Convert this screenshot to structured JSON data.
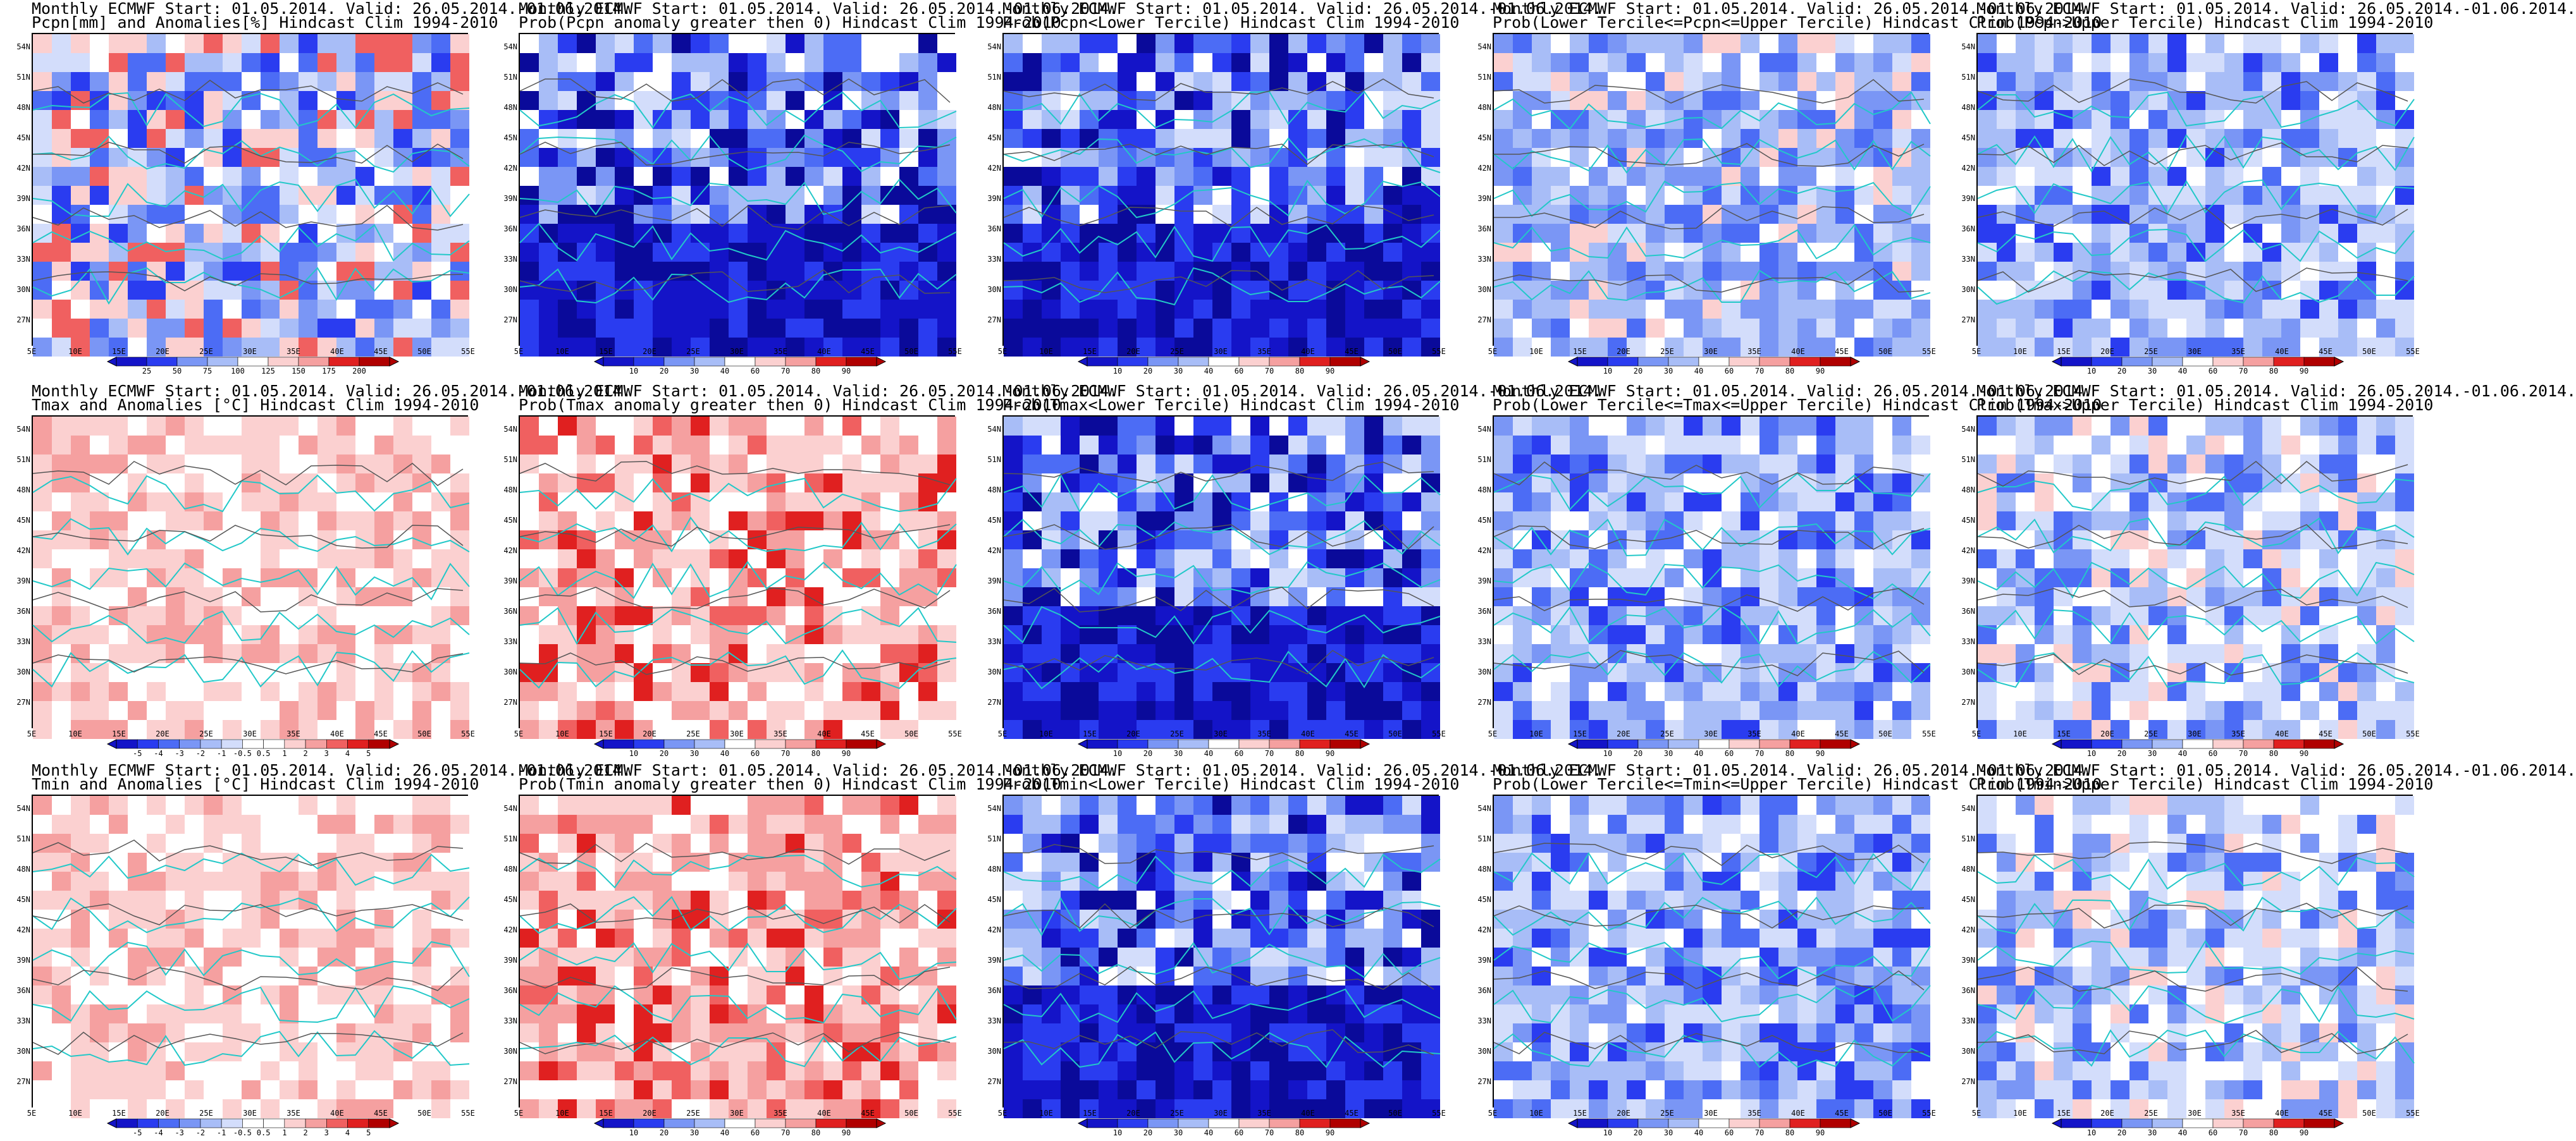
{
  "figure": {
    "background": "#ffffff",
    "coastline_color": "#22c8c8",
    "contour_color": "#555555",
    "lat_labels": [
      "54N",
      "51N",
      "48N",
      "45N",
      "42N",
      "39N",
      "36N",
      "33N",
      "30N",
      "27N"
    ],
    "lon_labels": [
      "5E",
      "10E",
      "15E",
      "20E",
      "25E",
      "30E",
      "35E",
      "40E",
      "45E",
      "50E",
      "55E"
    ]
  },
  "colorbars": {
    "pcpn_pct": [
      "25",
      "50",
      "75",
      "100",
      "125",
      "150",
      "175",
      "200"
    ],
    "temp_anom": [
      "-5",
      "-4",
      "-3",
      "-2",
      "-1",
      "-0.5",
      "0.5",
      "1",
      "2",
      "3",
      "4",
      "5"
    ],
    "prob": [
      "10",
      "20",
      "30",
      "40",
      "60",
      "70",
      "80",
      "90"
    ],
    "colors_div": [
      "#1414c8",
      "#2a3cf0",
      "#4c6cf5",
      "#7a96f5",
      "#a8bdf7",
      "#d3ddfb",
      "#ffffff",
      "#fbd0d0",
      "#f5a0a0",
      "#f06060",
      "#e02020",
      "#b00000"
    ]
  },
  "panels": [
    {
      "line1": "Monthly ECMWF Start: 01.05.2014. Valid: 26.05.2014.-01.06.2014.",
      "line2": "Pcpn[mm] and Anomalies[%] Hindcast Clim 1994-2010",
      "style": "pcpn",
      "cbar": "pcpn_pct"
    },
    {
      "line1": "Monthly ECMWF Start: 01.05.2014. Valid: 26.05.2014.-01.06.2014.",
      "line2": "Prob(Pcpn anomaly greater then 0) Hindcast Clim 1994-2010",
      "style": "blue-dark",
      "cbar": "prob"
    },
    {
      "line1": "Monthly ECMWF Start: 01.05.2014. Valid: 26.05.2014.-01.06.2014.",
      "line2": "Prob(Pcpn<Lower Tercile) Hindcast Clim 1994-2010",
      "style": "blue-dark",
      "cbar": "prob"
    },
    {
      "line1": "Monthly ECMWF Start: 01.05.2014. Valid: 26.05.2014.-01.06.2014.",
      "line2": "Prob(Lower Tercile<=Pcpn<=Upper Tercile) Hindcast Clim 1994-2010",
      "style": "mixed",
      "cbar": "prob"
    },
    {
      "line1": "Monthly ECMWF Start: 01.05.2014. Valid: 26.05.2014.-01.06.2014.",
      "line2": "Prob(Pcpn>Upper Tercile) Hindcast Clim 1994-2010",
      "style": "blue",
      "cbar": "prob"
    },
    {
      "line1": "Monthly ECMWF Start: 01.05.2014. Valid: 26.05.2014.-01.06.2014.",
      "line2": "Tmax and Anomalies [°C] Hindcast Clim 1994-2010",
      "style": "red-light",
      "cbar": "temp_anom"
    },
    {
      "line1": "Monthly ECMWF Start: 01.05.2014. Valid: 26.05.2014.-01.06.2014.",
      "line2": "Prob(Tmax anomaly greater then 0) Hindcast Clim 1994-2010",
      "style": "red",
      "cbar": "prob"
    },
    {
      "line1": "Monthly ECMWF Start: 01.05.2014. Valid: 26.05.2014.-01.06.2014.",
      "line2": "Prob(Tmax<Lower Tercile) Hindcast Clim 1994-2010",
      "style": "blue-dark",
      "cbar": "prob"
    },
    {
      "line1": "Monthly ECMWF Start: 01.05.2014. Valid: 26.05.2014.-01.06.2014.",
      "line2": "Prob(Lower Tercile<=Tmax<=Upper Tercile) Hindcast Clim 1994-2010",
      "style": "blue",
      "cbar": "prob"
    },
    {
      "line1": "Monthly ECMWF Start: 01.05.2014. Valid: 26.05.2014.-01.06.2014.",
      "line2": "Prob(Tmax>Upper Tercile) Hindcast Clim 1994-2010",
      "style": "blue-light",
      "cbar": "prob"
    },
    {
      "line1": "Monthly ECMWF Start: 01.05.2014. Valid: 26.05.2014.-01.06.2014.",
      "line2": "Tmin and Anomalies [°C] Hindcast Clim 1994-2010",
      "style": "red-light",
      "cbar": "temp_anom"
    },
    {
      "line1": "Monthly ECMWF Start: 01.05.2014. Valid: 26.05.2014.-01.06.2014.",
      "line2": "Prob(Tmin anomaly greater then 0) Hindcast Clim 1994-2010",
      "style": "red",
      "cbar": "prob"
    },
    {
      "line1": "Monthly ECMWF Start: 01.05.2014. Valid: 26.05.2014.-01.06.2014.",
      "line2": "Prob(Tmin<Lower Tercile) Hindcast Clim 1994-2010",
      "style": "blue-dark",
      "cbar": "prob"
    },
    {
      "line1": "Monthly ECMWF Start: 01.05.2014. Valid: 26.05.2014.-01.06.2014.",
      "line2": "Prob(Lower Tercile<=Tmin<=Upper Tercile) Hindcast Clim 1994-2010",
      "style": "blue",
      "cbar": "prob"
    },
    {
      "line1": "Monthly ECMWF Start: 01.05.2014. Valid: 26.05.2014.-01.06.2014.",
      "line2": "Prob(Tmin>Upper Tercile) Hindcast Clim 1994-2010",
      "style": "blue-light",
      "cbar": "prob"
    }
  ]
}
